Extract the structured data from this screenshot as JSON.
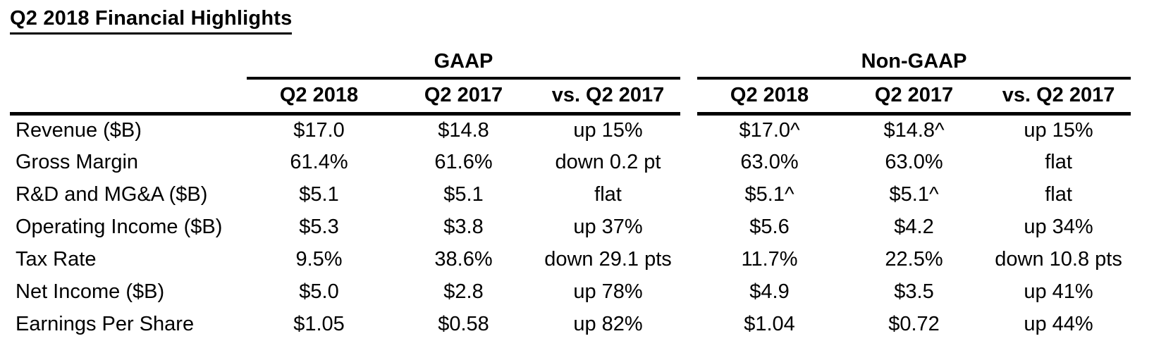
{
  "page": {
    "title": "Q2 2018 Financial Highlights"
  },
  "colors": {
    "text": "#000000",
    "background": "#ffffff",
    "rule": "#000000"
  },
  "table": {
    "groups": [
      {
        "label": "GAAP"
      },
      {
        "label": "Non-GAAP"
      }
    ],
    "column_headers": [
      "Q2 2018",
      "Q2 2017",
      "vs. Q2 2017",
      "Q2 2018",
      "Q2 2017",
      "vs. Q2 2017"
    ],
    "rows": [
      {
        "label": "Revenue ($B)",
        "values": [
          "$17.0",
          "$14.8",
          "up 15%",
          "$17.0^",
          "$14.8^",
          "up 15%"
        ]
      },
      {
        "label": "Gross Margin",
        "values": [
          "61.4%",
          "61.6%",
          "down 0.2 pt",
          "63.0%",
          "63.0%",
          "flat"
        ]
      },
      {
        "label": "R&D and MG&A ($B)",
        "values": [
          "$5.1",
          "$5.1",
          "flat",
          "$5.1^",
          "$5.1^",
          "flat"
        ]
      },
      {
        "label": "Operating Income ($B)",
        "values": [
          "$5.3",
          "$3.8",
          "up 37%",
          "$5.6",
          "$4.2",
          "up 34%"
        ]
      },
      {
        "label": "Tax Rate",
        "values": [
          "9.5%",
          "38.6%",
          "down 29.1 pts",
          "11.7%",
          "22.5%",
          "down 10.8 pts"
        ]
      },
      {
        "label": "Net Income ($B)",
        "values": [
          "$5.0",
          "$2.8",
          "up 78%",
          "$4.9",
          "$3.5",
          "up 41%"
        ]
      },
      {
        "label": "Earnings Per Share",
        "values": [
          "$1.05",
          "$0.58",
          "up 82%",
          "$1.04",
          "$0.72",
          "up 44%"
        ]
      }
    ]
  }
}
